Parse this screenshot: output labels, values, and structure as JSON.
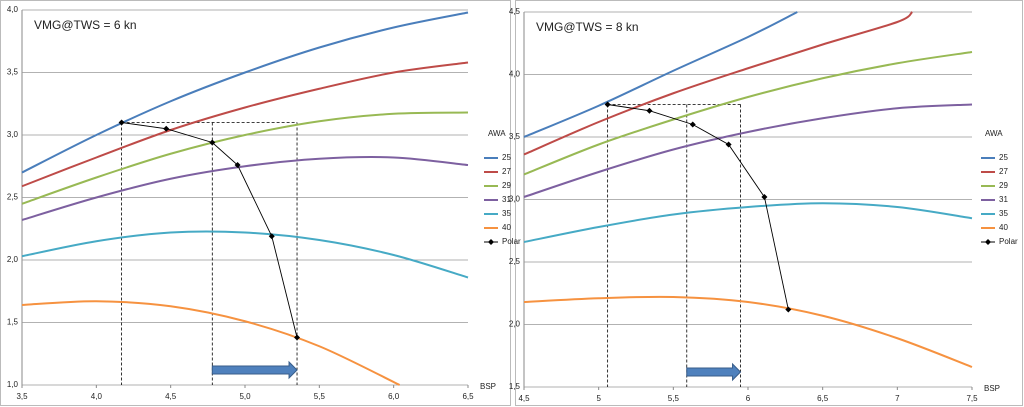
{
  "chart_data": [
    {
      "type": "line",
      "title": "VMG@TWS = 6 kn",
      "xlabel": "BSP",
      "legend_title": "AWA",
      "xlim": [
        3.5,
        6.5
      ],
      "xticks": [
        {
          "value": 3.5,
          "label": "3,5"
        },
        {
          "value": 4.0,
          "label": "4,0"
        },
        {
          "value": 4.5,
          "label": "4,5"
        },
        {
          "value": 5.0,
          "label": "5,0"
        },
        {
          "value": 5.5,
          "label": "5,5"
        },
        {
          "value": 6.0,
          "label": "6,0"
        },
        {
          "value": 6.5,
          "label": "6,5"
        }
      ],
      "ylim": [
        1.0,
        4.0
      ],
      "yticks": [
        {
          "value": 1.0,
          "label": "1,0"
        },
        {
          "value": 1.5,
          "label": "1,5"
        },
        {
          "value": 2.0,
          "label": "2,0"
        },
        {
          "value": 2.5,
          "label": "2,5"
        },
        {
          "value": 3.0,
          "label": "3,0"
        },
        {
          "value": 3.5,
          "label": "3,5"
        },
        {
          "value": 4.0,
          "label": "4,0"
        }
      ],
      "grid": true,
      "series": [
        {
          "name": "25",
          "color": "#4a7ebb",
          "x": [
            3.5,
            4.0,
            4.5,
            5.0,
            5.5,
            6.0,
            6.5
          ],
          "values": [
            2.7,
            3.0,
            3.27,
            3.5,
            3.7,
            3.86,
            3.98
          ]
        },
        {
          "name": "27",
          "color": "#be4b48",
          "x": [
            3.5,
            4.0,
            4.5,
            5.0,
            5.5,
            6.0,
            6.5
          ],
          "values": [
            2.59,
            2.82,
            3.04,
            3.22,
            3.37,
            3.5,
            3.58
          ]
        },
        {
          "name": "29",
          "color": "#98b954",
          "x": [
            3.5,
            4.0,
            4.5,
            5.0,
            5.5,
            6.0,
            6.5
          ],
          "values": [
            2.45,
            2.66,
            2.85,
            3.0,
            3.11,
            3.17,
            3.18
          ]
        },
        {
          "name": "31",
          "color": "#7d60a0",
          "x": [
            3.5,
            4.0,
            4.5,
            5.0,
            5.5,
            6.0,
            6.5
          ],
          "values": [
            2.32,
            2.5,
            2.65,
            2.75,
            2.81,
            2.82,
            2.76
          ]
        },
        {
          "name": "35",
          "color": "#46aac5",
          "x": [
            3.5,
            4.0,
            4.5,
            5.0,
            5.5,
            6.0,
            6.5
          ],
          "values": [
            2.03,
            2.15,
            2.22,
            2.22,
            2.16,
            2.04,
            1.86
          ]
        },
        {
          "name": "40",
          "color": "#f69240",
          "x": [
            3.5,
            4.0,
            4.5,
            5.0,
            5.5,
            6.04
          ],
          "values": [
            1.64,
            1.67,
            1.63,
            1.51,
            1.31,
            1.0
          ]
        },
        {
          "name": "Polar",
          "color": "#000000",
          "marker": "diamond",
          "x": [
            4.17,
            4.47,
            4.78,
            4.95,
            5.18,
            5.35
          ],
          "values": [
            3.1,
            3.05,
            2.94,
            2.76,
            2.19,
            1.38
          ]
        }
      ],
      "guide_x": [
        4.17,
        4.78,
        5.35
      ],
      "guide_y": 3.1
    },
    {
      "type": "line",
      "title": "VMG@TWS = 8 kn",
      "xlabel": "BSP",
      "legend_title": "AWA",
      "xlim": [
        4.5,
        7.5
      ],
      "xticks": [
        {
          "value": 4.5,
          "label": "4,5"
        },
        5,
        {
          "value": 5.5,
          "label": "5,5"
        },
        6,
        {
          "value": 6.5,
          "label": "6,5"
        },
        7,
        {
          "value": 7.5,
          "label": "7,5"
        }
      ],
      "ylim": [
        1.5,
        4.5
      ],
      "yticks": [
        {
          "value": 1.5,
          "label": "1,5"
        },
        {
          "value": 2.0,
          "label": "2,0"
        },
        {
          "value": 2.5,
          "label": "2,5"
        },
        {
          "value": 3.0,
          "label": "3,0"
        },
        {
          "value": 3.5,
          "label": "3,5"
        },
        {
          "value": 4.0,
          "label": "4,0"
        },
        {
          "value": 4.5,
          "label": "4,5"
        }
      ],
      "grid": true,
      "series": [
        {
          "name": "25",
          "color": "#4a7ebb",
          "x": [
            4.5,
            5.0,
            5.5,
            6.0,
            6.33
          ],
          "values": [
            3.5,
            3.75,
            4.03,
            4.3,
            4.5
          ]
        },
        {
          "name": "27",
          "color": "#be4b48",
          "x": [
            4.5,
            5.0,
            5.5,
            6.0,
            6.5,
            7.0,
            7.1
          ],
          "values": [
            3.36,
            3.62,
            3.85,
            4.05,
            4.24,
            4.42,
            4.5
          ]
        },
        {
          "name": "29",
          "color": "#98b954",
          "x": [
            4.5,
            5.0,
            5.5,
            6.0,
            6.5,
            7.0,
            7.5
          ],
          "values": [
            3.2,
            3.44,
            3.64,
            3.82,
            3.97,
            4.09,
            4.18
          ]
        },
        {
          "name": "31",
          "color": "#7d60a0",
          "x": [
            4.5,
            5.0,
            5.5,
            6.0,
            6.5,
            7.0,
            7.5
          ],
          "values": [
            3.02,
            3.22,
            3.4,
            3.54,
            3.65,
            3.73,
            3.76
          ]
        },
        {
          "name": "35",
          "color": "#46aac5",
          "x": [
            4.5,
            5.0,
            5.5,
            6.0,
            6.5,
            7.0,
            7.5
          ],
          "values": [
            2.66,
            2.78,
            2.88,
            2.94,
            2.97,
            2.94,
            2.85
          ]
        },
        {
          "name": "40",
          "color": "#f69240",
          "x": [
            4.5,
            5.0,
            5.5,
            6.0,
            6.5,
            7.0,
            7.5
          ],
          "values": [
            2.18,
            2.21,
            2.22,
            2.18,
            2.07,
            1.89,
            1.66
          ]
        },
        {
          "name": "Polar",
          "color": "#000000",
          "marker": "diamond",
          "x": [
            5.06,
            5.34,
            5.63,
            5.87,
            6.11,
            6.27
          ],
          "values": [
            3.76,
            3.71,
            3.6,
            3.44,
            3.02,
            2.12
          ]
        }
      ],
      "guide_x": [
        5.06,
        5.59,
        5.95
      ],
      "guide_y": 3.76
    }
  ]
}
